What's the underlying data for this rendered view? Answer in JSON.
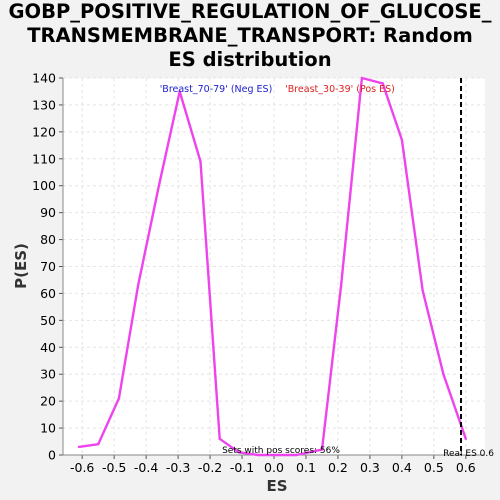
{
  "chart_data": {
    "type": "line",
    "title_lines": [
      "GOBP_POSITIVE_REGULATION_OF_GLUCOSE_",
      "TRANSMEMBRANE_TRANSPORT: Random",
      "ES distribution"
    ],
    "xlabel": "ES",
    "ylabel": "P(ES)",
    "xlim": [
      -0.66,
      0.66
    ],
    "ylim": [
      0,
      140
    ],
    "grid": true,
    "xticks": [
      "-0.6",
      "-0.5",
      "-0.4",
      "-0.3",
      "-0.2",
      "-0.1",
      "0.0",
      "0.1",
      "0.2",
      "0.3",
      "0.4",
      "0.5",
      "0.6"
    ],
    "xtick_values": [
      -0.6,
      -0.5,
      -0.4,
      -0.3,
      -0.2,
      -0.1,
      0.0,
      0.1,
      0.2,
      0.3,
      0.4,
      0.5,
      0.6
    ],
    "yticks": [
      "0",
      "10",
      "20",
      "30",
      "40",
      "50",
      "60",
      "70",
      "80",
      "90",
      "100",
      "110",
      "120",
      "130",
      "140"
    ],
    "ytick_values": [
      0,
      10,
      20,
      30,
      40,
      50,
      60,
      70,
      80,
      90,
      100,
      110,
      120,
      130,
      140
    ],
    "series": [
      {
        "color": "#ee44ee",
        "x": [
          -0.61,
          -0.55,
          -0.485,
          -0.425,
          -0.36,
          -0.295,
          -0.23,
          -0.17,
          -0.11,
          -0.05,
          0.01,
          0.07,
          0.15,
          0.21,
          0.275,
          0.34,
          0.4,
          0.465,
          0.53,
          0.6
        ],
        "y": [
          3,
          4,
          21,
          63,
          100,
          135,
          109,
          6,
          1,
          0,
          0,
          0,
          2,
          63,
          140,
          138,
          117,
          61,
          30,
          6
        ]
      }
    ],
    "real_es": 0.585,
    "legend": {
      "neg_label": "'Breast_70-79' (Neg ES)",
      "neg_color": "#2222cc",
      "pos_label": "'Breast_30-39' (Pos ES)",
      "pos_color": "#dd2222",
      "placement": "top-center"
    },
    "annotation_pos_scores": "Sets with pos scores: 56%",
    "annotation_real_es": "Real ES 0.6"
  }
}
